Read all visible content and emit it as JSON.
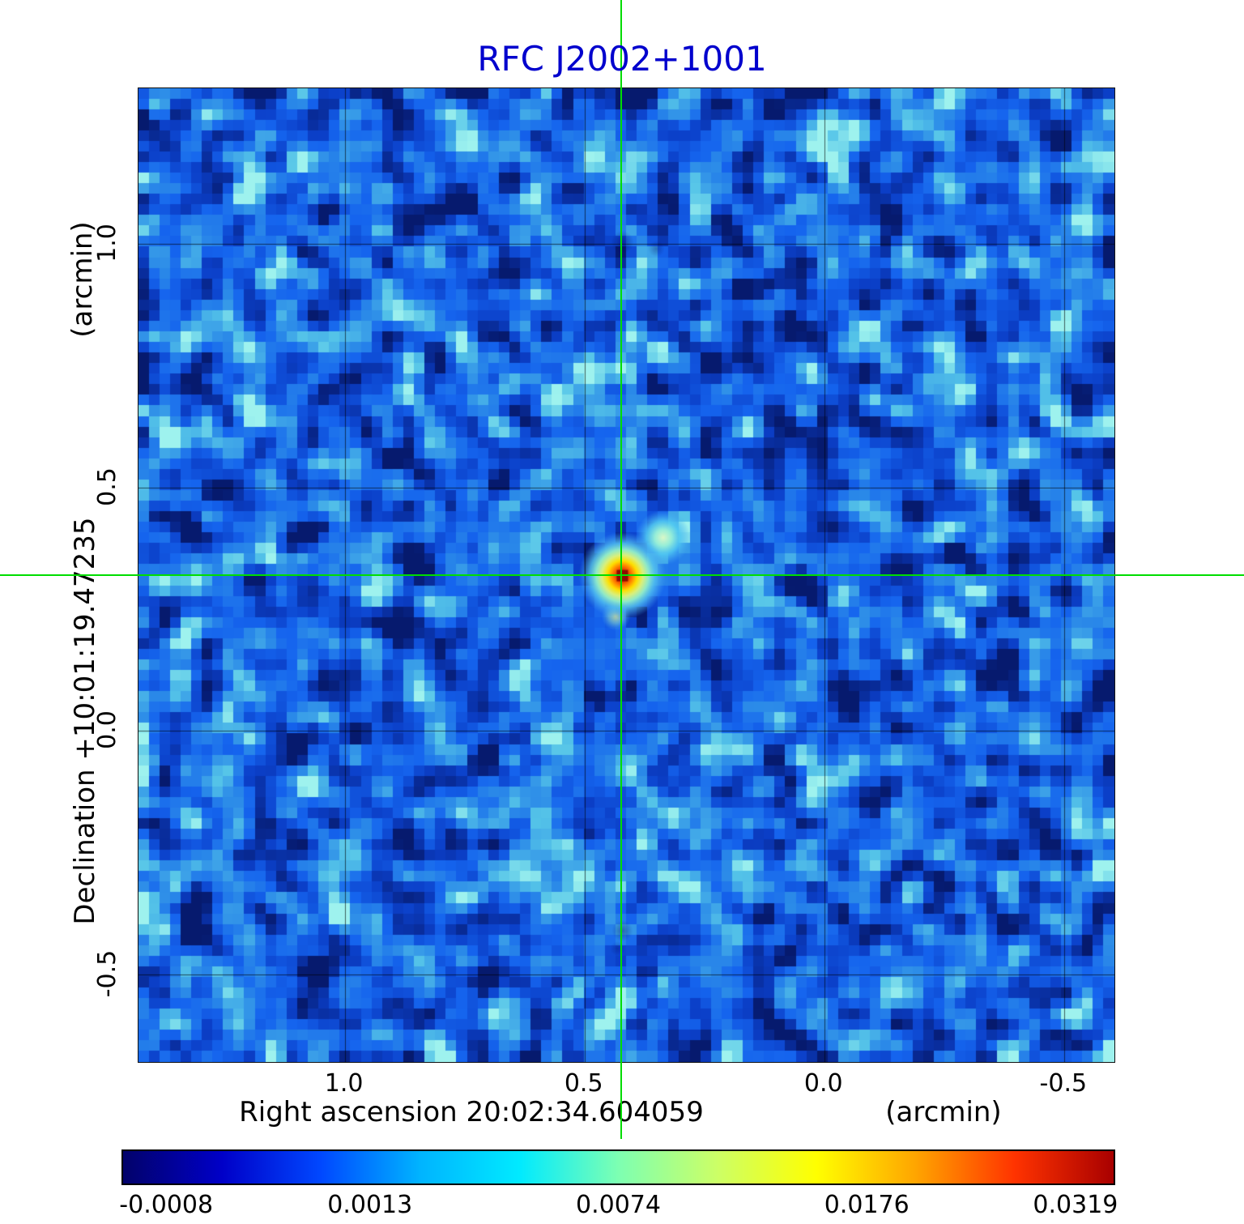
{
  "title": {
    "text": "RFC J2002+1001",
    "color": "#0000cd"
  },
  "axes": {
    "x": {
      "label": "Right ascension  20:02:34.604059",
      "unit": "(arcmin)",
      "tick_labels": [
        "1.0",
        "0.5",
        "0.0",
        "-0.5"
      ]
    },
    "y": {
      "label": "Declination  +10:01:19.47235",
      "unit": "(arcmin)",
      "tick_labels": [
        "1.0",
        "0.5",
        "0.0",
        "-0.5"
      ]
    }
  },
  "colorbar": {
    "tick_labels": [
      "-0.0008",
      "0.0013",
      "0.0074",
      "0.0176",
      "0.0319"
    ],
    "tick_positions": [
      0.045,
      0.25,
      0.5,
      0.75,
      0.96
    ],
    "gradient_colors": [
      "#02026a",
      "#0000c8",
      "#0048ff",
      "#00b4ff",
      "#00eaff",
      "#7dffb2",
      "#ccff66",
      "#ffff00",
      "#ffa500",
      "#ff3300",
      "#a80000"
    ]
  },
  "crosshair": {
    "color": "#00dd00",
    "ra_arcmin": 0.421,
    "dec_arcmin": 0.319
  },
  "chart_data": {
    "type": "heatmap",
    "title": "RFC J2002+1001",
    "xlabel": "Right ascension  20:02:34.604059 (arcmin)",
    "ylabel": "Declination  +10:01:19.47235 (arcmin)",
    "x_ticks_arcmin": [
      1.0,
      0.5,
      0.0,
      -0.5
    ],
    "y_ticks_arcmin": [
      1.0,
      0.5,
      0.0,
      -0.5
    ],
    "x_range_arcmin": [
      1.43,
      -0.605
    ],
    "y_range_arcmin": [
      1.32,
      -0.68
    ],
    "colorbar_tick_values": [
      -0.0008,
      0.0013,
      0.0074,
      0.0176,
      0.0319
    ],
    "colorbar_scale": "nonlinear",
    "background_level_typical": 0.001,
    "grid": true,
    "crosshair_at": {
      "ra_arcmin": 0.421,
      "dec_arcmin": 0.319
    },
    "features": [
      {
        "name": "peak-component",
        "ra_arcmin": 0.421,
        "dec_arcmin": 0.319,
        "peak_value": 0.032,
        "appearance": "compact red core with orange-yellow halo at crosshair"
      },
      {
        "name": "secondary-component",
        "ra_arcmin": 0.336,
        "dec_arcmin": 0.397,
        "peak_value": 0.008,
        "appearance": "pale cyan-green compact blob upper-right of peak"
      }
    ]
  }
}
